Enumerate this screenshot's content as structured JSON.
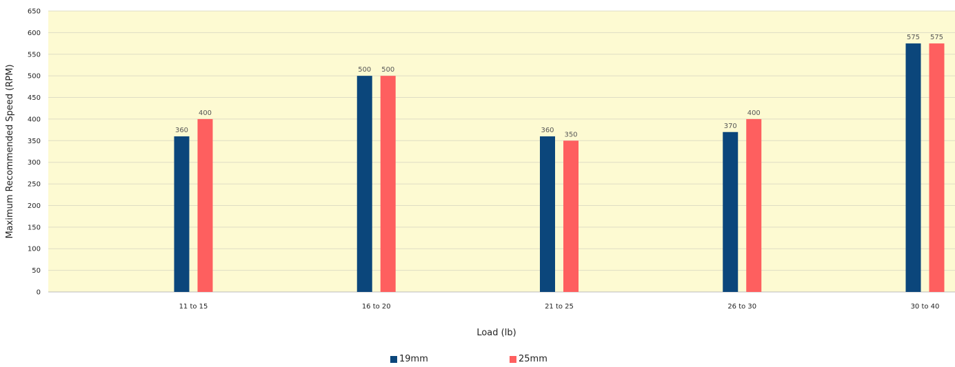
{
  "chart_data": {
    "type": "bar",
    "title": "",
    "xlabel": "Load (lb)",
    "ylabel": "Maximum Recommended Speed (RPM)",
    "categories": [
      "11 to 15",
      "16 to 20",
      "21 to 25",
      "26 to 30",
      "30 to 40"
    ],
    "series": [
      {
        "name": "19mm",
        "color": "#0b467b",
        "values": [
          360,
          500,
          360,
          370,
          575
        ]
      },
      {
        "name": "25mm",
        "color": "#fe5f5f",
        "values": [
          400,
          500,
          350,
          400,
          575
        ]
      }
    ],
    "ylim": [
      0,
      650
    ],
    "yticks": [
      0,
      50,
      100,
      150,
      200,
      250,
      300,
      350,
      400,
      450,
      500,
      550,
      600,
      650
    ],
    "plot_background": "#fdfad2",
    "grid": true,
    "legend_position": "bottom"
  }
}
